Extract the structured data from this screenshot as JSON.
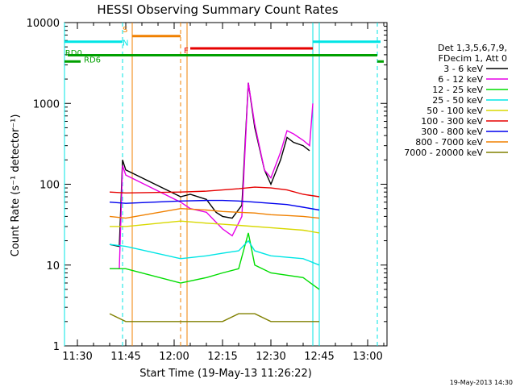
{
  "chart_data": {
    "type": "line",
    "title": "HESSI Observing Summary Count Rates",
    "xlabel": "Start Time (19-May-13 11:26:22)",
    "ylabel": "Count Rate (s⁻¹ detector⁻¹)",
    "yscale": "log",
    "ylim": [
      1,
      10000
    ],
    "xlim": [
      "11:26",
      "13:06"
    ],
    "x_ticks": [
      "11:30",
      "11:45",
      "12:00",
      "12:15",
      "12:30",
      "12:45",
      "13:00"
    ],
    "y_ticks": [
      "1",
      "10",
      "100",
      "1000",
      "10000"
    ],
    "timestamp": "19-May-2013 14:30",
    "legend_header": [
      "Det 1,3,5,6,7,9,",
      "FDecim 1, Att 0"
    ],
    "legend_position": "right",
    "series": [
      {
        "name": "3 - 6 keV",
        "color": "#000000",
        "points": [
          [
            "11:40",
            18
          ],
          [
            "11:43",
            17
          ],
          [
            "11:44",
            200
          ],
          [
            "11:45",
            150
          ],
          [
            "12:02",
            70
          ],
          [
            "12:05",
            75
          ],
          [
            "12:10",
            65
          ],
          [
            "12:13",
            45
          ],
          [
            "12:15",
            40
          ],
          [
            "12:18",
            38
          ],
          [
            "12:21",
            55
          ],
          [
            "12:23",
            1800
          ],
          [
            "12:25",
            500
          ],
          [
            "12:28",
            150
          ],
          [
            "12:30",
            100
          ],
          [
            "12:33",
            200
          ],
          [
            "12:35",
            380
          ],
          [
            "12:37",
            330
          ],
          [
            "12:40",
            300
          ],
          [
            "12:42",
            260
          ]
        ]
      },
      {
        "name": "6 - 12 keV",
        "color": "#e600e6",
        "points": [
          [
            "11:40",
            9
          ],
          [
            "11:43",
            9
          ],
          [
            "11:44",
            170
          ],
          [
            "11:45",
            130
          ],
          [
            "12:02",
            60
          ],
          [
            "12:05",
            50
          ],
          [
            "12:10",
            45
          ],
          [
            "12:15",
            28
          ],
          [
            "12:18",
            23
          ],
          [
            "12:21",
            40
          ],
          [
            "12:23",
            1800
          ],
          [
            "12:25",
            550
          ],
          [
            "12:28",
            150
          ],
          [
            "12:30",
            120
          ],
          [
            "12:33",
            250
          ],
          [
            "12:35",
            460
          ],
          [
            "12:37",
            420
          ],
          [
            "12:40",
            350
          ],
          [
            "12:42",
            300
          ],
          [
            "12:43",
            1000
          ]
        ]
      },
      {
        "name": "12 - 25 keV",
        "color": "#00dd00",
        "points": [
          [
            "11:40",
            9
          ],
          [
            "11:45",
            9
          ],
          [
            "12:02",
            6
          ],
          [
            "12:10",
            7
          ],
          [
            "12:15",
            8
          ],
          [
            "12:20",
            9
          ],
          [
            "12:23",
            25
          ],
          [
            "12:25",
            10
          ],
          [
            "12:30",
            8
          ],
          [
            "12:40",
            7
          ],
          [
            "12:45",
            5
          ]
        ]
      },
      {
        "name": "25 - 50 keV",
        "color": "#00e5e5",
        "points": [
          [
            "11:40",
            18
          ],
          [
            "11:45",
            17
          ],
          [
            "12:02",
            12
          ],
          [
            "12:10",
            13
          ],
          [
            "12:15",
            14
          ],
          [
            "12:20",
            15
          ],
          [
            "12:23",
            20
          ],
          [
            "12:25",
            15
          ],
          [
            "12:30",
            13
          ],
          [
            "12:40",
            12
          ],
          [
            "12:45",
            10
          ]
        ]
      },
      {
        "name": "50 - 100 keV",
        "color": "#d8d800",
        "points": [
          [
            "11:40",
            30
          ],
          [
            "11:45",
            30
          ],
          [
            "12:02",
            35
          ],
          [
            "12:10",
            33
          ],
          [
            "12:15",
            32
          ],
          [
            "12:20",
            31
          ],
          [
            "12:30",
            29
          ],
          [
            "12:40",
            27
          ],
          [
            "12:45",
            25
          ]
        ]
      },
      {
        "name": "100 - 300 keV",
        "color": "#e60000",
        "points": [
          [
            "11:40",
            80
          ],
          [
            "11:45",
            78
          ],
          [
            "12:02",
            80
          ],
          [
            "12:10",
            82
          ],
          [
            "12:15",
            85
          ],
          [
            "12:20",
            88
          ],
          [
            "12:25",
            92
          ],
          [
            "12:30",
            90
          ],
          [
            "12:35",
            85
          ],
          [
            "12:40",
            75
          ],
          [
            "12:45",
            70
          ]
        ]
      },
      {
        "name": "300 - 800 keV",
        "color": "#0000ee",
        "points": [
          [
            "11:40",
            60
          ],
          [
            "11:45",
            58
          ],
          [
            "12:02",
            62
          ],
          [
            "12:10",
            63
          ],
          [
            "12:15",
            63
          ],
          [
            "12:20",
            62
          ],
          [
            "12:25",
            60
          ],
          [
            "12:30",
            58
          ],
          [
            "12:35",
            56
          ],
          [
            "12:40",
            52
          ],
          [
            "12:45",
            48
          ]
        ]
      },
      {
        "name": "800 - 7000 keV",
        "color": "#f08000",
        "points": [
          [
            "11:40",
            40
          ],
          [
            "11:45",
            38
          ],
          [
            "12:02",
            50
          ],
          [
            "12:10",
            48
          ],
          [
            "12:15",
            46
          ],
          [
            "12:20",
            45
          ],
          [
            "12:25",
            44
          ],
          [
            "12:30",
            42
          ],
          [
            "12:35",
            41
          ],
          [
            "12:40",
            40
          ],
          [
            "12:45",
            38
          ]
        ]
      },
      {
        "name": "7000 - 20000 keV",
        "color": "#808000",
        "points": [
          [
            "11:40",
            2.5
          ],
          [
            "11:45",
            2
          ],
          [
            "12:02",
            2
          ],
          [
            "12:10",
            2
          ],
          [
            "12:15",
            2
          ],
          [
            "12:20",
            2.5
          ],
          [
            "12:25",
            2.5
          ],
          [
            "12:30",
            2
          ],
          [
            "12:40",
            2
          ],
          [
            "12:45",
            2
          ]
        ]
      }
    ],
    "state_bars": [
      {
        "label": "RD0",
        "color": "#00a000",
        "row": "top"
      },
      {
        "label": "RD6",
        "color": "#00a000",
        "row": "bottom"
      },
      {
        "label": "S",
        "color": "#f08000"
      },
      {
        "label": "N",
        "color": "#00e5e5"
      },
      {
        "label": "F",
        "color": "#e60000"
      }
    ]
  }
}
